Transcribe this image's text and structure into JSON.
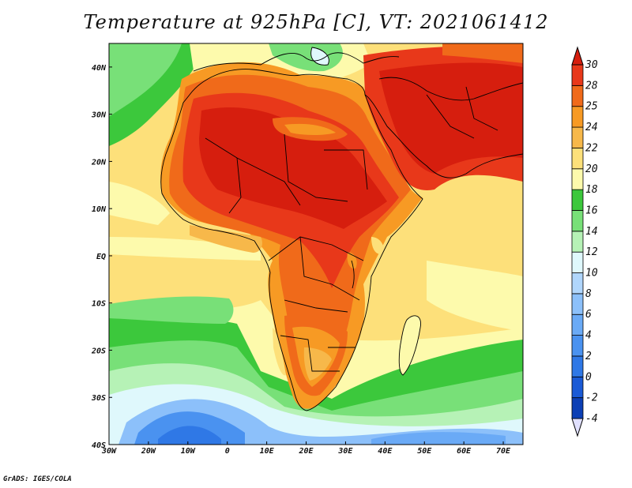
{
  "title": "Temperature at 925hPa [C], VT: 2021061412",
  "credit": "GrADS: IGES/COLA",
  "map": {
    "lon_range": [
      -30,
      75
    ],
    "lat_range": [
      -40,
      45
    ],
    "lon_ticks": [
      {
        "value": -30,
        "label": "30W"
      },
      {
        "value": -20,
        "label": "20W"
      },
      {
        "value": -10,
        "label": "10W"
      },
      {
        "value": 0,
        "label": "0"
      },
      {
        "value": 10,
        "label": "10E"
      },
      {
        "value": 20,
        "label": "20E"
      },
      {
        "value": 30,
        "label": "30E"
      },
      {
        "value": 40,
        "label": "40E"
      },
      {
        "value": 50,
        "label": "50E"
      },
      {
        "value": 60,
        "label": "60E"
      },
      {
        "value": 70,
        "label": "70E"
      }
    ],
    "lat_ticks": [
      {
        "value": 40,
        "label": "40N"
      },
      {
        "value": 30,
        "label": "30N"
      },
      {
        "value": 20,
        "label": "20N"
      },
      {
        "value": 10,
        "label": "10N"
      },
      {
        "value": 0,
        "label": "EQ"
      },
      {
        "value": -10,
        "label": "10S"
      },
      {
        "value": -20,
        "label": "20S"
      },
      {
        "value": -30,
        "label": "30S"
      },
      {
        "value": -40,
        "label": "40S"
      }
    ]
  },
  "colorbar": {
    "levels": [
      {
        "label": "-4",
        "color": "#0a1a78"
      },
      {
        "label": "-2",
        "color": "#0c3fb5"
      },
      {
        "label": "0",
        "color": "#1a5ad6"
      },
      {
        "label": "2",
        "color": "#2f78e6"
      },
      {
        "label": "4",
        "color": "#4a92f0"
      },
      {
        "label": "6",
        "color": "#6aaaf6"
      },
      {
        "label": "8",
        "color": "#8cc0fa"
      },
      {
        "label": "10",
        "color": "#b0d6fc"
      },
      {
        "label": "12",
        "color": "#dff8fc"
      },
      {
        "label": "14",
        "color": "#b6f2b6"
      },
      {
        "label": "16",
        "color": "#78e078"
      },
      {
        "label": "18",
        "color": "#3cc83c"
      },
      {
        "label": "20",
        "color": "#fdfaac"
      },
      {
        "label": "22",
        "color": "#fde07a"
      },
      {
        "label": "24",
        "color": "#f7b84a"
      },
      {
        "label": "25",
        "color": "#f79a24"
      },
      {
        "label": "28",
        "color": "#f06a1a"
      },
      {
        "label": "30",
        "color": "#e8381a"
      }
    ],
    "over_color": "#d61e0e",
    "under_color": "#e0e0ff"
  }
}
